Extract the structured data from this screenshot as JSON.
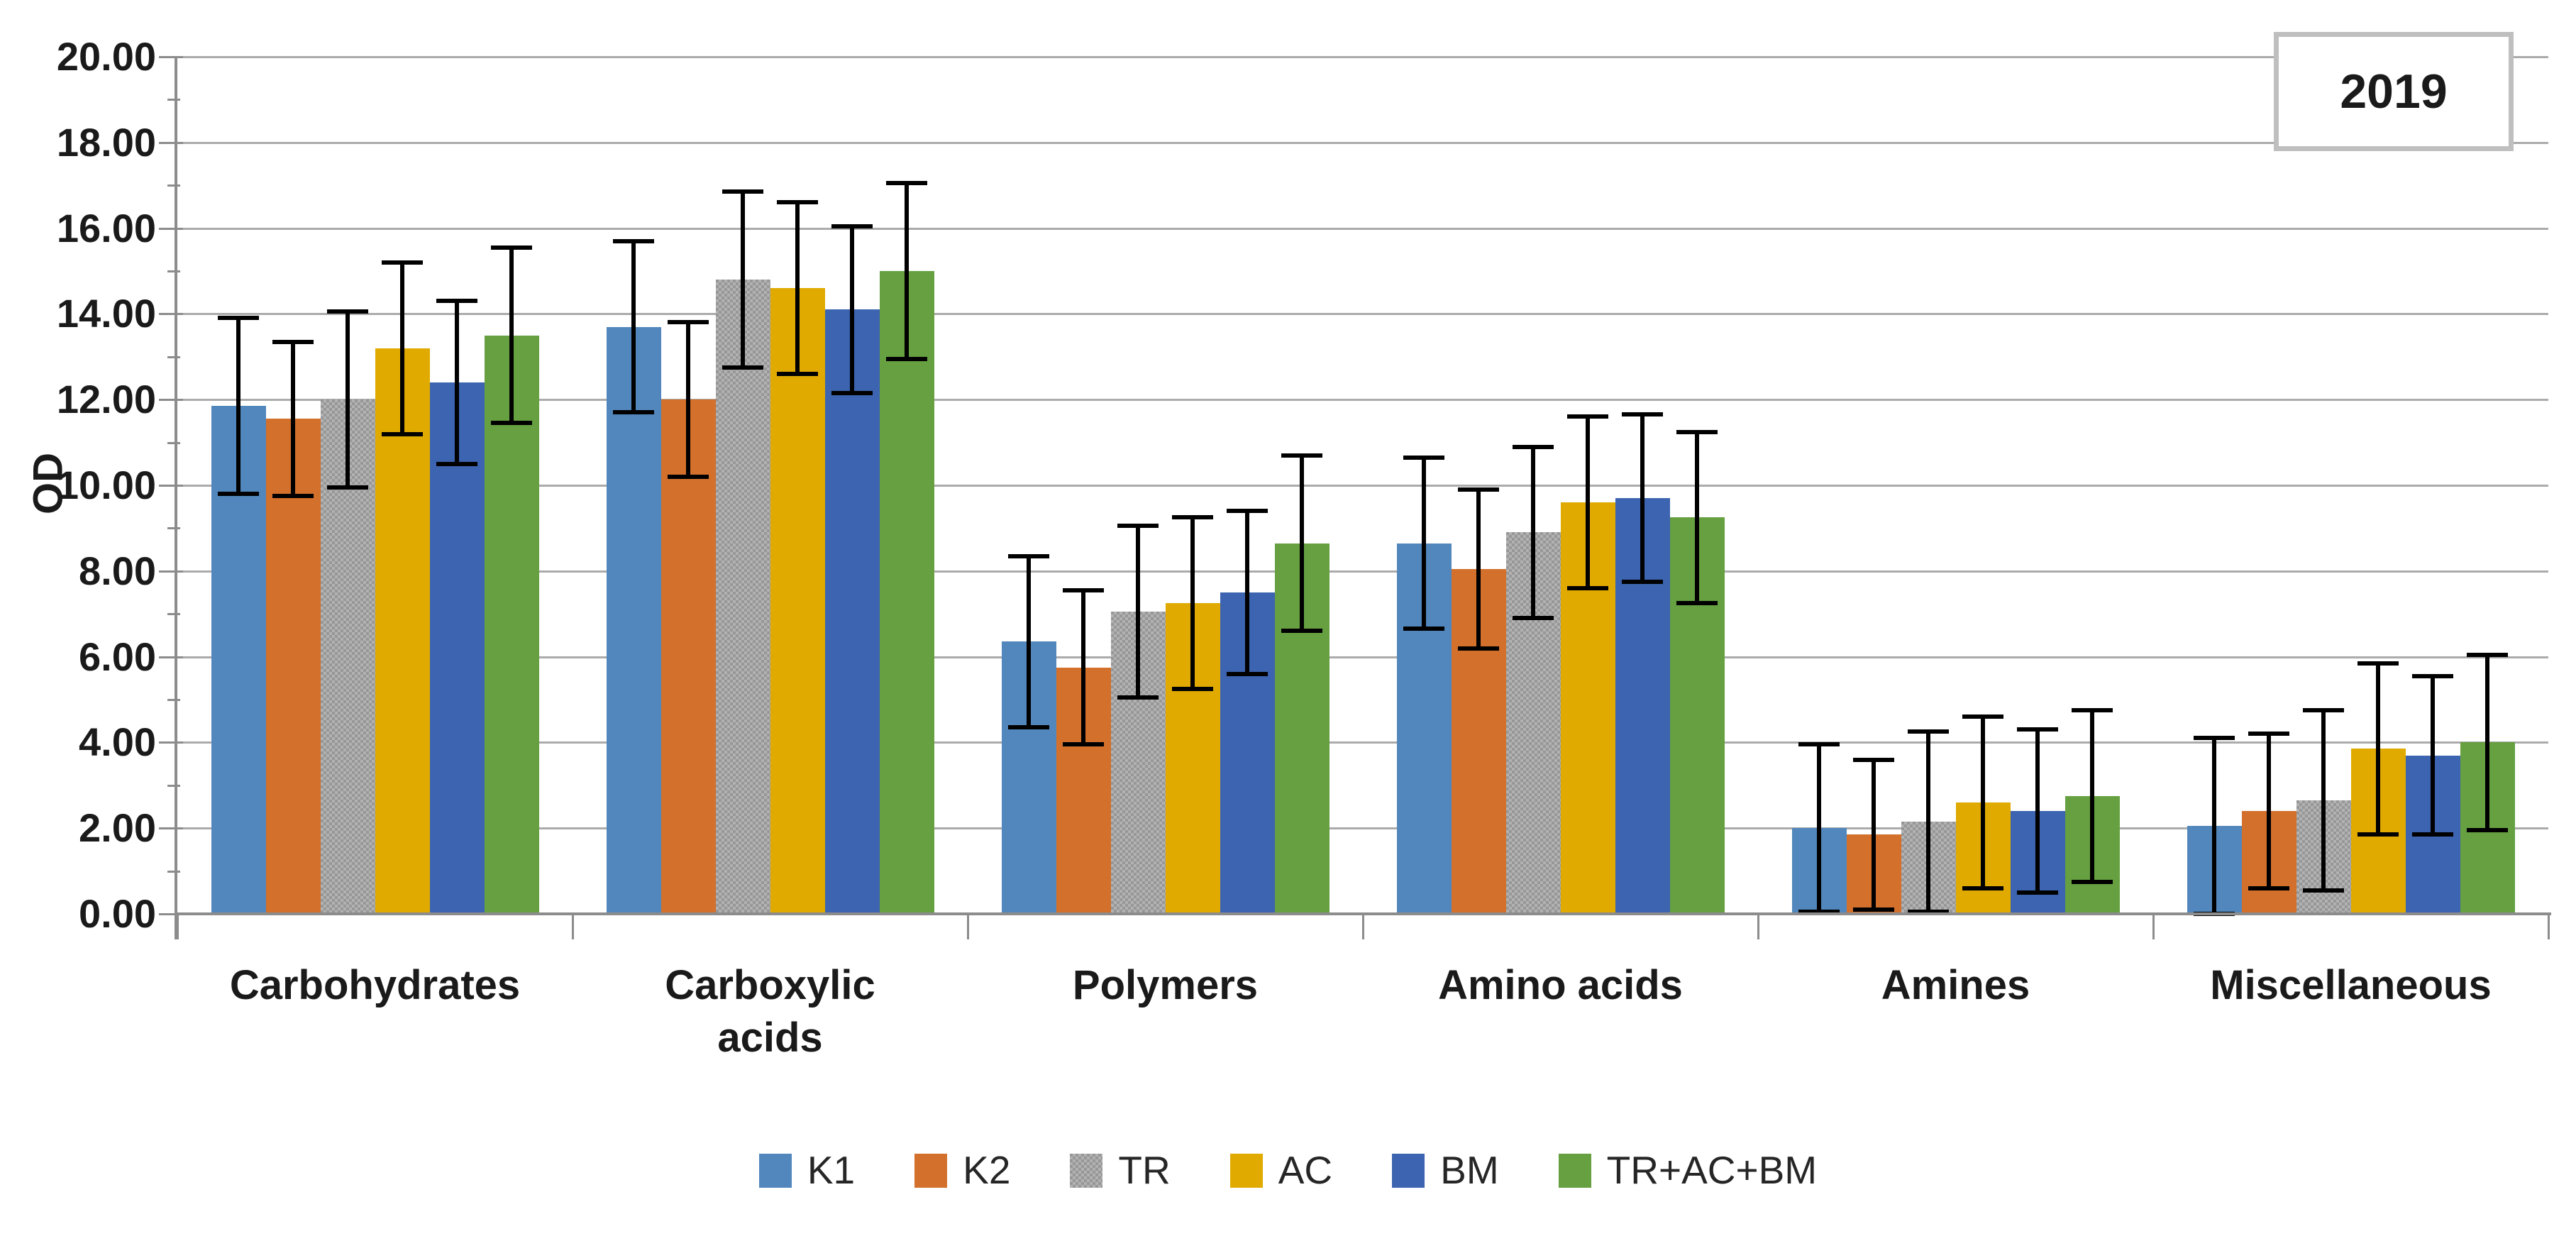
{
  "figure": {
    "background": "#FFFFFF",
    "year_annotation": "2019"
  },
  "chart_data": {
    "type": "bar",
    "title": "",
    "xlabel": "",
    "ylabel": "OD",
    "ylim": [
      0,
      20
    ],
    "ytick_step": 2,
    "ytick_labels": [
      "0.00",
      "2.00",
      "4.00",
      "6.00",
      "8.00",
      "10.00",
      "12.00",
      "14.00",
      "16.00",
      "18.00",
      "20.00"
    ],
    "grid": true,
    "error_bars": true,
    "legend_position": "bottom",
    "annotation": "2019",
    "categories": [
      "Carbohydrates",
      "Carboxylic acids",
      "Polymers",
      "Amino acids",
      "Amines",
      "Miscellaneous"
    ],
    "series": [
      {
        "name": "K1",
        "color": "#5187BC",
        "pattern": "solid",
        "values": [
          11.85,
          13.7,
          6.35,
          8.65,
          2.0,
          2.05
        ],
        "errors": [
          2.05,
          2.0,
          2.0,
          2.0,
          1.95,
          2.05
        ]
      },
      {
        "name": "K2",
        "color": "#D2702C",
        "pattern": "solid",
        "values": [
          11.55,
          12.0,
          5.75,
          8.05,
          1.85,
          2.4
        ],
        "errors": [
          1.8,
          1.8,
          1.8,
          1.85,
          1.75,
          1.8
        ]
      },
      {
        "name": "TR",
        "color": "#A5A5A5",
        "pattern": "checker",
        "values": [
          12.0,
          14.8,
          7.05,
          8.9,
          2.15,
          2.65
        ],
        "errors": [
          2.05,
          2.05,
          2.0,
          2.0,
          2.1,
          2.1
        ]
      },
      {
        "name": "AC",
        "color": "#E0AA00",
        "pattern": "solid",
        "values": [
          13.2,
          14.6,
          7.25,
          9.6,
          2.6,
          3.85
        ],
        "errors": [
          2.0,
          2.0,
          2.0,
          2.0,
          2.0,
          2.0
        ]
      },
      {
        "name": "BM",
        "color": "#3C64B0",
        "pattern": "solid",
        "values": [
          12.4,
          14.1,
          7.5,
          9.7,
          2.4,
          3.7
        ],
        "errors": [
          1.9,
          1.95,
          1.9,
          1.95,
          1.9,
          1.85
        ]
      },
      {
        "name": "TR+AC+BM",
        "color": "#66A040",
        "pattern": "solid",
        "values": [
          13.5,
          15.0,
          8.65,
          9.25,
          2.75,
          4.0
        ],
        "errors": [
          2.05,
          2.05,
          2.05,
          2.0,
          2.0,
          2.05
        ]
      }
    ],
    "style_colors": {
      "axis": "#8C8C8C",
      "gridline": "#ABABAB",
      "text": "#1A1A1A",
      "error_bar": "#000000",
      "annotation_border": "#BFBFBF"
    }
  }
}
